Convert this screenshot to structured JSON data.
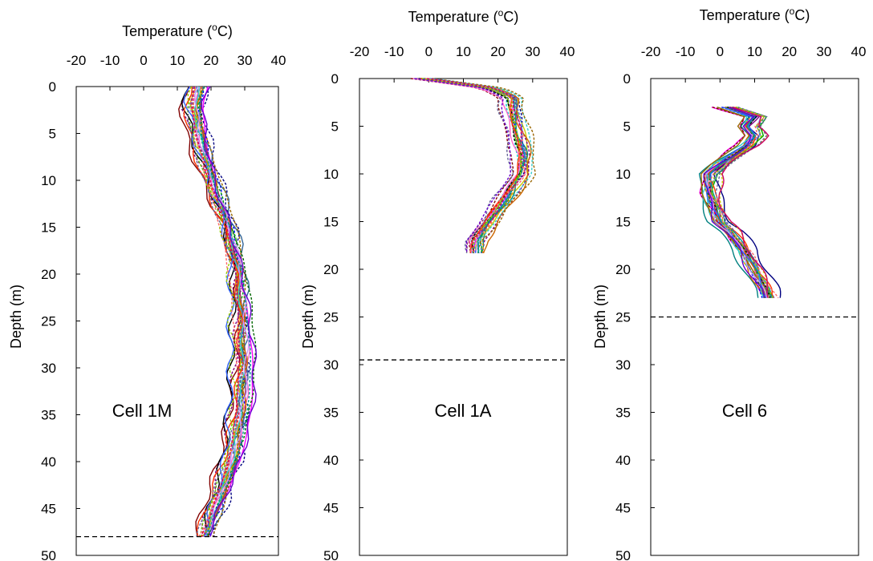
{
  "chart_data": [
    {
      "type": "line",
      "title": "",
      "xlabel": "Temperature (oC)",
      "ylabel": "Depth (m)",
      "xlim": [
        -20,
        40
      ],
      "ylim": [
        0,
        50
      ],
      "y_inverted": true,
      "x_axis_position": "top",
      "xticks": [
        "-20",
        "-10",
        "0",
        "10",
        "20",
        "30",
        "40"
      ],
      "yticks": [
        "0",
        "5",
        "10",
        "15",
        "20",
        "25",
        "30",
        "35",
        "40",
        "45",
        "50"
      ],
      "annotation": "Cell 1M",
      "dashed_reference_depth": 48,
      "profile_count": 30,
      "profile_depth_range": [
        0,
        48
      ],
      "mean_profile": {
        "depth": [
          0,
          2,
          5,
          10,
          15,
          20,
          25,
          30,
          35,
          40,
          45,
          48
        ],
        "temp": [
          16,
          15,
          16,
          20,
          25,
          28,
          29,
          29.5,
          28.5,
          26,
          21,
          18
        ]
      },
      "grid": false,
      "legend": "none"
    },
    {
      "type": "line",
      "title": "",
      "xlabel": "Temperature (oC)",
      "ylabel": "Depth (m)",
      "xlim": [
        -20,
        40
      ],
      "ylim": [
        0,
        50
      ],
      "y_inverted": true,
      "x_axis_position": "top",
      "xticks": [
        "-20",
        "-10",
        "0",
        "10",
        "20",
        "30",
        "40"
      ],
      "yticks": [
        "0",
        "5",
        "10",
        "15",
        "20",
        "25",
        "30",
        "35",
        "40",
        "45",
        "50"
      ],
      "annotation": "Cell 1A",
      "dashed_reference_depth": 29.5,
      "profile_count": 30,
      "profile_depth_range": [
        0,
        18.3
      ],
      "mean_profile": {
        "depth": [
          0,
          1,
          2,
          3,
          5,
          8,
          10,
          13,
          15,
          17,
          18.3
        ],
        "temp": [
          -2,
          18,
          24,
          24,
          25,
          27,
          26.5,
          21,
          17,
          13,
          13
        ]
      },
      "grid": false,
      "legend": "none"
    },
    {
      "type": "line",
      "title": "",
      "xlabel": "Temperature (oC)",
      "ylabel": "Depth (m)",
      "xlim": [
        -20,
        40
      ],
      "ylim": [
        0,
        50
      ],
      "y_inverted": true,
      "x_axis_position": "top",
      "xticks": [
        "-20",
        "-10",
        "0",
        "10",
        "20",
        "30",
        "40"
      ],
      "yticks": [
        "0",
        "5",
        "10",
        "15",
        "20",
        "25",
        "30",
        "35",
        "40",
        "45",
        "50"
      ],
      "annotation": "Cell 6",
      "dashed_reference_depth": 25,
      "profile_count": 30,
      "profile_depth_range": [
        3,
        23
      ],
      "mean_profile": {
        "depth": [
          3,
          4,
          5,
          6,
          7,
          8,
          9,
          10,
          11,
          12,
          13,
          14,
          15,
          16,
          18,
          20,
          22,
          23
        ],
        "temp": [
          2,
          10,
          8,
          10,
          8,
          4,
          0,
          -3,
          -3,
          -3,
          -2,
          -1,
          0,
          3,
          7,
          10,
          13,
          14
        ]
      },
      "grid": false,
      "legend": "none"
    }
  ]
}
